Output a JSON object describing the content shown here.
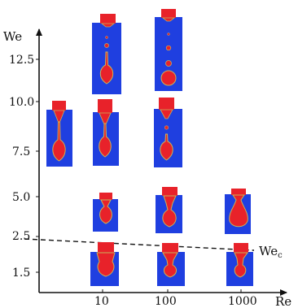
{
  "axes": {
    "x_label": "Re",
    "y_label": "We",
    "x_ticks": [
      "10",
      "100",
      "1000"
    ],
    "y_ticks": [
      "1.5",
      "2.5",
      "5.0",
      "7.5",
      "10.0",
      "12.5"
    ]
  },
  "critical_line": {
    "label_main": "We",
    "label_sub": "c"
  },
  "colors": {
    "fluid": "#1f3fe0",
    "drop": "#e8222a",
    "interface": "#c8b25a",
    "axis": "#111111"
  },
  "snapshots": [
    {
      "re": "10",
      "we": "1.5",
      "shape": "thick-neck"
    },
    {
      "re": "100",
      "we": "1.5",
      "shape": "necking"
    },
    {
      "re": "1000",
      "we": "1.5",
      "shape": "necking"
    },
    {
      "re": "10",
      "we": "5.0",
      "shape": "short-bulb"
    },
    {
      "re": "100",
      "we": "5.0",
      "shape": "short-bulb"
    },
    {
      "re": "1000",
      "we": "5.0",
      "shape": "pear"
    },
    {
      "re": "1",
      "we": "10.0",
      "shape": "long-jet"
    },
    {
      "re": "10",
      "we": "10.0",
      "shape": "long-jet"
    },
    {
      "re": "100",
      "we": "10.0",
      "shape": "long-jet"
    },
    {
      "re": "10",
      "we": "12.5",
      "shape": "satellite-jet"
    },
    {
      "re": "100",
      "we": "12.5",
      "shape": "satellite-jet"
    }
  ]
}
